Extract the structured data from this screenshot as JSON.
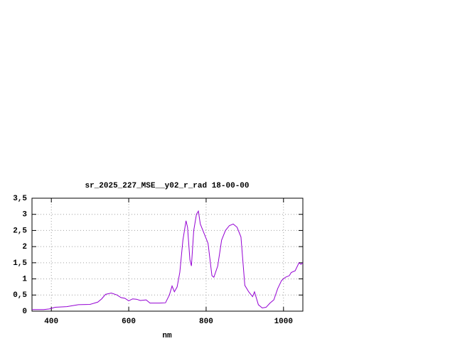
{
  "chart_data": {
    "type": "line",
    "title": "sr_2025_227_MSE__y02_r_rad 18-00-00",
    "x_label": "nm",
    "x": [
      350,
      380,
      395,
      410,
      440,
      470,
      500,
      520,
      530,
      540,
      555,
      570,
      580,
      590,
      600,
      610,
      620,
      630,
      645,
      655,
      680,
      695,
      705,
      712,
      718,
      725,
      732,
      740,
      748,
      752,
      758,
      762,
      768,
      775,
      780,
      785,
      795,
      805,
      815,
      820,
      830,
      840,
      850,
      860,
      870,
      880,
      890,
      900,
      910,
      920,
      925,
      935,
      945,
      955,
      965,
      975,
      985,
      995,
      1005,
      1015,
      1020,
      1030,
      1040,
      1045,
      1050
    ],
    "series": [
      {
        "color": "#9400d3",
        "values": [
          0.05,
          0.05,
          0.07,
          0.12,
          0.14,
          0.2,
          0.21,
          0.28,
          0.38,
          0.52,
          0.56,
          0.5,
          0.42,
          0.4,
          0.32,
          0.38,
          0.37,
          0.33,
          0.35,
          0.25,
          0.25,
          0.26,
          0.5,
          0.78,
          0.6,
          0.75,
          1.2,
          2.2,
          2.8,
          2.6,
          1.6,
          1.4,
          2.5,
          3.0,
          3.1,
          2.7,
          2.4,
          2.1,
          1.1,
          1.05,
          1.4,
          2.2,
          2.5,
          2.65,
          2.7,
          2.6,
          2.3,
          0.8,
          0.6,
          0.45,
          0.6,
          0.2,
          0.1,
          0.12,
          0.25,
          0.35,
          0.7,
          0.95,
          1.05,
          1.1,
          1.2,
          1.25,
          1.5,
          1.45,
          1.5
        ]
      }
    ],
    "xlim": [
      350,
      1050
    ],
    "xticks": [
      400,
      600,
      800,
      1000
    ],
    "ylim": [
      0,
      3.5
    ],
    "yticks": [
      0,
      {
        "value": 0.5,
        "label": "0,5"
      },
      1,
      {
        "value": 1.5,
        "label": "1,5"
      },
      2,
      {
        "value": 2.5,
        "label": "2,5"
      },
      3,
      {
        "value": 3.5,
        "label": "3,5"
      }
    ],
    "grid": true
  }
}
